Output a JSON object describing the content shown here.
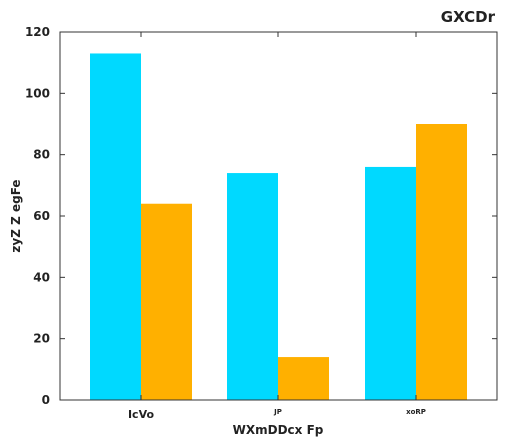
{
  "chart_data": {
    "type": "bar",
    "title": "GXCDr",
    "xlabel": "WXmDDcx Fp",
    "ylabel": "zyZ Z egFe",
    "categories": [
      "IcVo",
      "JP",
      "xoRP"
    ],
    "series": [
      {
        "values": [
          113,
          74,
          76
        ],
        "color": "#00d9ff"
      },
      {
        "values": [
          64,
          14,
          90
        ],
        "color": "#ffb000"
      }
    ],
    "ylim": [
      0,
      120
    ],
    "yticks": [
      0,
      20,
      40,
      60,
      80,
      100,
      120
    ],
    "grid": false,
    "legend": "none"
  }
}
